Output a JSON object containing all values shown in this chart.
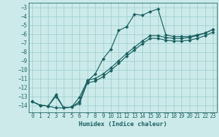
{
  "xlabel": "Humidex (Indice chaleur)",
  "background_color": "#cceaea",
  "grid_color": "#9fcfcf",
  "line_color": "#1a6060",
  "xlim": [
    -0.5,
    23.5
  ],
  "ylim": [
    -14.8,
    -2.5
  ],
  "xticks": [
    0,
    1,
    2,
    3,
    4,
    5,
    6,
    7,
    8,
    9,
    10,
    11,
    12,
    13,
    14,
    15,
    16,
    17,
    18,
    19,
    20,
    21,
    22,
    23
  ],
  "yticks": [
    -3,
    -4,
    -5,
    -6,
    -7,
    -8,
    -9,
    -10,
    -11,
    -12,
    -13,
    -14
  ],
  "s1_x": [
    0,
    1,
    2,
    3,
    4,
    5,
    6,
    7,
    8,
    9,
    10,
    11,
    12,
    13,
    14,
    15,
    16,
    17,
    18,
    19,
    20,
    21,
    22,
    23
  ],
  "s1_y": [
    -13.6,
    -14.0,
    -14.1,
    -14.3,
    -14.3,
    -14.2,
    -13.1,
    -11.3,
    -10.5,
    -8.8,
    -7.7,
    -5.6,
    -5.2,
    -3.8,
    -3.9,
    -3.5,
    -3.2,
    -6.1,
    -6.3,
    -6.3,
    -6.3,
    -6.1,
    -5.9,
    -5.5
  ],
  "s2_x": [
    0,
    1,
    2,
    3,
    4,
    5,
    6,
    7,
    8,
    9,
    10,
    11,
    12,
    13,
    14,
    15,
    16,
    17,
    18,
    19,
    20,
    21,
    22,
    23
  ],
  "s2_y": [
    -13.6,
    -14.0,
    -14.1,
    -12.8,
    -14.3,
    -14.2,
    -13.6,
    -11.2,
    -11.0,
    -10.5,
    -9.8,
    -9.0,
    -8.2,
    -7.5,
    -6.8,
    -6.2,
    -6.2,
    -6.4,
    -6.5,
    -6.5,
    -6.4,
    -6.2,
    -5.9,
    -5.5
  ],
  "s3_x": [
    0,
    1,
    2,
    3,
    4,
    5,
    6,
    7,
    8,
    9,
    10,
    11,
    12,
    13,
    14,
    15,
    16,
    17,
    18,
    19,
    20,
    21,
    22,
    23
  ],
  "s3_y": [
    -13.6,
    -14.0,
    -14.1,
    -13.0,
    -14.3,
    -14.2,
    -13.8,
    -11.5,
    -11.3,
    -10.8,
    -10.1,
    -9.3,
    -8.5,
    -7.8,
    -7.1,
    -6.5,
    -6.5,
    -6.7,
    -6.8,
    -6.8,
    -6.7,
    -6.5,
    -6.2,
    -5.8
  ]
}
